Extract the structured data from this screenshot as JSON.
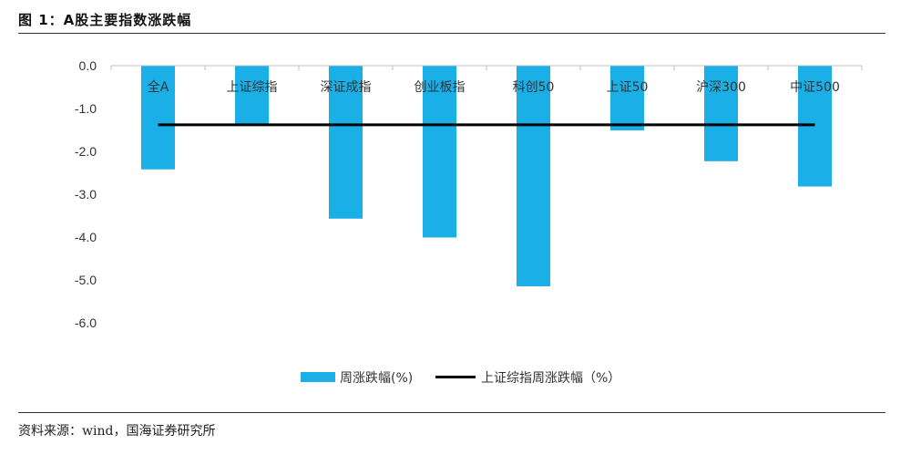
{
  "figure": {
    "title": "图 1：A股主要指数涨跌幅",
    "source": "资料来源：wind，国海证券研究所"
  },
  "colors": {
    "bar": "#1aafe6",
    "line": "#000000",
    "axis": "#bfbfbf"
  },
  "chart_data": {
    "type": "bar",
    "title": "",
    "xlabel": "",
    "ylabel": "",
    "categories": [
      "全A",
      "上证综指",
      "深证成指",
      "创业板指",
      "科创50",
      "上证50",
      "沪深300",
      "中证500"
    ],
    "series": [
      {
        "name": "周涨跌幅(%)",
        "type": "bar",
        "values": [
          -2.42,
          -1.38,
          -3.57,
          -4.01,
          -5.15,
          -1.51,
          -2.23,
          -2.82
        ]
      },
      {
        "name": "上证综指周涨跌幅（%）",
        "type": "line",
        "values": [
          -1.38,
          -1.38,
          -1.38,
          -1.38,
          -1.38,
          -1.38,
          -1.38,
          -1.38
        ]
      }
    ],
    "ylim": [
      -6.0,
      0.0
    ],
    "yticks": [
      "0.0",
      "-1.0",
      "-2.0",
      "-3.0",
      "-4.0",
      "-5.0",
      "-6.0"
    ],
    "grid": false,
    "legend": "bottom"
  }
}
